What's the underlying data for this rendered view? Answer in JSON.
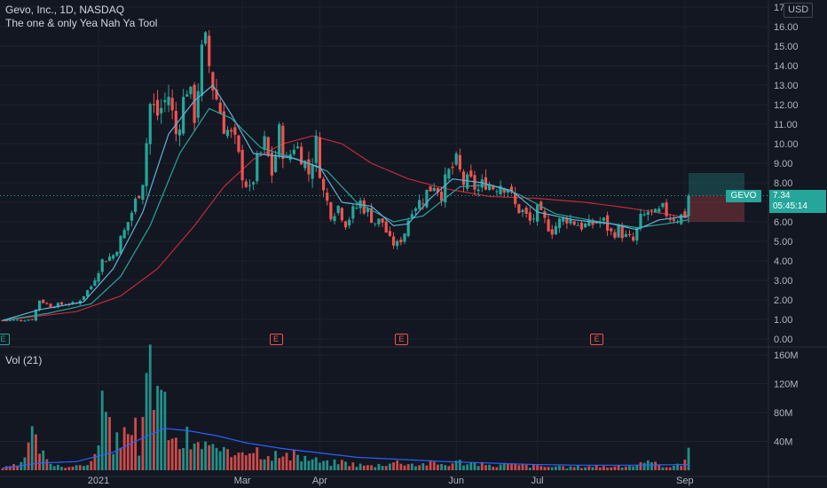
{
  "header": {
    "title": "Gevo, Inc., 1D, NASDAQ",
    "indicator": "The one & only Yea Nah Ya Tool",
    "volume_label": "Vol (21)",
    "currency": "USD"
  },
  "last": {
    "symbol": "GEVO",
    "price": "7.34",
    "countdown": "05:45:14",
    "value": 7.34
  },
  "earnings_marker_label": "E",
  "colors": {
    "background": "#131722",
    "up": "#26a69a",
    "down": "#ef5350",
    "ma_fast": "#5fb3d6",
    "ma_mid": "#26a69a",
    "ma_slow": "#c2293a",
    "volume_ma": "#2962ff",
    "grid": "#1e222d"
  },
  "icons": [
    "earnings-icon"
  ],
  "chart_data": [
    {
      "type": "candlestick",
      "title": "Gevo, Inc., 1D, NASDAQ",
      "ylim": [
        0,
        17
      ],
      "y_ticks": [
        "0.00",
        "1.00",
        "2.00",
        "3.00",
        "4.00",
        "5.00",
        "6.00",
        "7.00",
        "8.00",
        "9.00",
        "10.00",
        "11.00",
        "12.00",
        "13.00",
        "14.00",
        "15.00",
        "16.00",
        "17"
      ],
      "x_ticks": [
        "2021",
        "Mar",
        "Apr",
        "Jun",
        "Jul",
        "Sep"
      ],
      "x_tick_index": [
        26,
        65,
        86,
        123,
        145,
        185
      ],
      "earnings_index": [
        0,
        74,
        108,
        161
      ],
      "price_close_approx": [
        [
          0,
          0.95
        ],
        [
          4,
          0.96
        ],
        [
          8,
          1.0
        ],
        [
          10,
          2.0
        ],
        [
          13,
          1.7
        ],
        [
          17,
          1.8
        ],
        [
          20,
          1.8
        ],
        [
          24,
          2.7
        ],
        [
          27,
          4.0
        ],
        [
          30,
          4.3
        ],
        [
          33,
          5.5
        ],
        [
          36,
          7.0
        ],
        [
          38,
          8.2
        ],
        [
          40,
          12.0
        ],
        [
          42,
          11.5
        ],
        [
          45,
          12.5
        ],
        [
          47,
          10.5
        ],
        [
          50,
          13.0
        ],
        [
          52,
          11.5
        ],
        [
          54,
          14.5
        ],
        [
          55,
          15.0
        ],
        [
          57,
          13.0
        ],
        [
          60,
          11.0
        ],
        [
          63,
          10.0
        ],
        [
          65,
          8.5
        ],
        [
          67,
          7.5
        ],
        [
          69,
          9.0
        ],
        [
          71,
          10.0
        ],
        [
          73,
          8.5
        ],
        [
          75,
          10.5
        ],
        [
          77,
          9.0
        ],
        [
          79,
          10.0
        ],
        [
          81,
          9.5
        ],
        [
          83,
          8.5
        ],
        [
          85,
          10.0
        ],
        [
          87,
          7.5
        ],
        [
          89,
          6.5
        ],
        [
          91,
          6.8
        ],
        [
          93,
          6.0
        ],
        [
          95,
          6.5
        ],
        [
          97,
          7.0
        ],
        [
          99,
          6.5
        ],
        [
          101,
          6.0
        ],
        [
          103,
          6.0
        ],
        [
          105,
          5.0
        ],
        [
          107,
          4.8
        ],
        [
          109,
          5.5
        ],
        [
          111,
          6.8
        ],
        [
          113,
          7.0
        ],
        [
          115,
          7.5
        ],
        [
          117,
          8.0
        ],
        [
          119,
          7.5
        ],
        [
          121,
          8.5
        ],
        [
          123,
          9.0
        ],
        [
          125,
          8.0
        ],
        [
          127,
          8.0
        ],
        [
          129,
          7.6
        ],
        [
          131,
          8.1
        ],
        [
          133,
          7.8
        ],
        [
          135,
          8.0
        ],
        [
          137,
          7.8
        ],
        [
          139,
          6.8
        ],
        [
          141,
          6.5
        ],
        [
          143,
          6.0
        ],
        [
          145,
          6.5
        ],
        [
          147,
          6.0
        ],
        [
          149,
          5.6
        ],
        [
          151,
          6.0
        ],
        [
          153,
          6.2
        ],
        [
          155,
          6.0
        ],
        [
          157,
          5.8
        ],
        [
          159,
          5.8
        ],
        [
          161,
          6.0
        ],
        [
          163,
          6.0
        ],
        [
          165,
          5.4
        ],
        [
          167,
          5.6
        ],
        [
          169,
          5.2
        ],
        [
          171,
          5.0
        ],
        [
          173,
          6.1
        ],
        [
          175,
          6.5
        ],
        [
          177,
          6.3
        ],
        [
          179,
          6.6
        ],
        [
          181,
          6.3
        ],
        [
          183,
          6.2
        ],
        [
          185,
          6.4
        ],
        [
          186,
          7.34
        ]
      ],
      "ma_fast_approx": [
        [
          0,
          0.95
        ],
        [
          10,
          1.5
        ],
        [
          22,
          1.9
        ],
        [
          30,
          3.6
        ],
        [
          38,
          6.5
        ],
        [
          45,
          10.5
        ],
        [
          52,
          12.2
        ],
        [
          57,
          13.0
        ],
        [
          62,
          11.5
        ],
        [
          68,
          9.5
        ],
        [
          78,
          9.3
        ],
        [
          86,
          8.8
        ],
        [
          92,
          7.0
        ],
        [
          100,
          6.8
        ],
        [
          106,
          5.8
        ],
        [
          110,
          5.9
        ],
        [
          116,
          7.2
        ],
        [
          122,
          8.2
        ],
        [
          130,
          8.0
        ],
        [
          138,
          7.6
        ],
        [
          145,
          6.5
        ],
        [
          155,
          6.1
        ],
        [
          165,
          5.9
        ],
        [
          172,
          5.6
        ],
        [
          178,
          6.1
        ],
        [
          186,
          6.3
        ]
      ],
      "ma_mid_approx": [
        [
          0,
          0.95
        ],
        [
          12,
          1.3
        ],
        [
          24,
          1.8
        ],
        [
          32,
          3.2
        ],
        [
          40,
          5.8
        ],
        [
          48,
          9.5
        ],
        [
          56,
          11.8
        ],
        [
          62,
          11.3
        ],
        [
          70,
          9.8
        ],
        [
          80,
          9.2
        ],
        [
          88,
          8.6
        ],
        [
          96,
          7.0
        ],
        [
          106,
          6.0
        ],
        [
          114,
          6.3
        ],
        [
          124,
          7.8
        ],
        [
          132,
          7.9
        ],
        [
          140,
          7.4
        ],
        [
          150,
          6.4
        ],
        [
          162,
          6.0
        ],
        [
          172,
          5.7
        ],
        [
          180,
          5.9
        ],
        [
          186,
          6.1
        ]
      ],
      "ma_slow_approx": [
        [
          0,
          0.95
        ],
        [
          20,
          1.4
        ],
        [
          32,
          2.2
        ],
        [
          42,
          3.6
        ],
        [
          52,
          5.8
        ],
        [
          60,
          7.8
        ],
        [
          68,
          9.2
        ],
        [
          76,
          10.0
        ],
        [
          84,
          10.4
        ],
        [
          92,
          10.0
        ],
        [
          100,
          9.0
        ],
        [
          110,
          8.2
        ],
        [
          120,
          7.7
        ],
        [
          132,
          7.3
        ],
        [
          145,
          7.2
        ],
        [
          158,
          7.0
        ],
        [
          170,
          6.7
        ],
        [
          180,
          6.4
        ],
        [
          186,
          6.2
        ]
      ],
      "projection_band": {
        "target": [
          7.34,
          8.5
        ],
        "stop": [
          6.0,
          7.34
        ]
      }
    },
    {
      "type": "bar",
      "title": "Vol (21)",
      "ylim": [
        0,
        160
      ],
      "y_ticks": [
        "40M",
        "80M",
        "120M",
        "160M"
      ],
      "unit": "M",
      "volume_approx": [
        [
          0,
          3
        ],
        [
          5,
          8
        ],
        [
          8,
          45
        ],
        [
          10,
          30
        ],
        [
          12,
          12
        ],
        [
          16,
          6
        ],
        [
          20,
          5
        ],
        [
          24,
          12
        ],
        [
          25,
          18
        ],
        [
          27,
          95
        ],
        [
          28,
          75
        ],
        [
          30,
          30
        ],
        [
          32,
          45
        ],
        [
          34,
          70
        ],
        [
          35,
          85
        ],
        [
          37,
          18
        ],
        [
          38,
          55
        ],
        [
          40,
          155
        ],
        [
          41,
          138
        ],
        [
          43,
          110
        ],
        [
          44,
          80
        ],
        [
          46,
          40
        ],
        [
          48,
          35
        ],
        [
          50,
          45
        ],
        [
          52,
          30
        ],
        [
          55,
          40
        ],
        [
          58,
          25
        ],
        [
          62,
          20
        ],
        [
          65,
          35
        ],
        [
          68,
          30
        ],
        [
          72,
          25
        ],
        [
          76,
          18
        ],
        [
          80,
          20
        ],
        [
          84,
          15
        ],
        [
          88,
          10
        ],
        [
          92,
          12
        ],
        [
          96,
          8
        ],
        [
          100,
          6
        ],
        [
          104,
          10
        ],
        [
          108,
          12
        ],
        [
          112,
          8
        ],
        [
          116,
          10
        ],
        [
          120,
          8
        ],
        [
          124,
          12
        ],
        [
          128,
          10
        ],
        [
          132,
          6
        ],
        [
          136,
          8
        ],
        [
          140,
          7
        ],
        [
          144,
          6
        ],
        [
          148,
          5
        ],
        [
          152,
          4
        ],
        [
          156,
          5
        ],
        [
          160,
          6
        ],
        [
          164,
          5
        ],
        [
          168,
          5
        ],
        [
          172,
          8
        ],
        [
          176,
          10
        ],
        [
          180,
          6
        ],
        [
          184,
          7
        ],
        [
          186,
          34
        ]
      ],
      "volume_ma_approx": [
        [
          0,
          3
        ],
        [
          10,
          10
        ],
        [
          20,
          12
        ],
        [
          30,
          25
        ],
        [
          38,
          45
        ],
        [
          44,
          58
        ],
        [
          50,
          55
        ],
        [
          58,
          48
        ],
        [
          66,
          38
        ],
        [
          76,
          30
        ],
        [
          86,
          24
        ],
        [
          96,
          18
        ],
        [
          108,
          15
        ],
        [
          120,
          12
        ],
        [
          132,
          10
        ],
        [
          144,
          8
        ],
        [
          156,
          7
        ],
        [
          170,
          7
        ],
        [
          186,
          8
        ]
      ]
    }
  ]
}
